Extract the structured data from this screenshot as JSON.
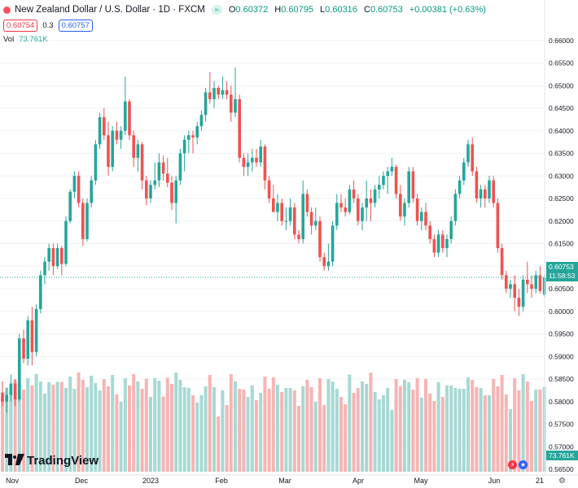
{
  "header": {
    "title": "New Zealand Dollar / U.S. Dollar · 1D · FXCM",
    "pill": "≈",
    "ohlc": [
      {
        "k": "O",
        "v": "0.60372"
      },
      {
        "k": "H",
        "v": "0.60795"
      },
      {
        "k": "L",
        "v": "0.60316"
      },
      {
        "k": "C",
        "v": "0.60753"
      }
    ],
    "change": "+0.00381 (+0.63%)",
    "sell_price": "0.60754",
    "spread": "0.3",
    "buy_price": "0.60757",
    "vol_label": "Vol",
    "vol_value": "73.761K"
  },
  "brand": {
    "logo_text": "TradingView"
  },
  "price_tags": {
    "last_price": "0.60753",
    "countdown": "11:58:53",
    "volume": "73.761K"
  },
  "icon_names": [
    "tradingview-logo-icon",
    "flash-icon",
    "us-flag-icon",
    "settings-gear-icon"
  ],
  "colors": {
    "up": "#26a69a",
    "down": "#ef5350",
    "up_volume": "#a7d9d4",
    "down_volume": "#f8b4b3",
    "last_line": "#26a69a"
  },
  "chart_data": {
    "type": "candlestick",
    "symbol": "NZDUSD",
    "ylim": [
      0.565,
      0.665
    ],
    "y_ticks": [
      "0.66000",
      "0.65500",
      "0.65000",
      "0.64500",
      "0.64000",
      "0.63500",
      "0.63000",
      "0.62500",
      "0.62000",
      "0.61500",
      "0.61000",
      "0.60500",
      "0.60000",
      "0.59500",
      "0.59000",
      "0.58500",
      "0.58000",
      "0.57500",
      "0.57000",
      "0.56500"
    ],
    "x_ticks": [
      "Nov",
      "Dec",
      "2023",
      "Feb",
      "Mar",
      "Apr",
      "May",
      "Jun",
      "21"
    ],
    "candles": [
      [
        0.582,
        0.5845,
        0.579,
        0.58
      ],
      [
        0.58,
        0.583,
        0.5775,
        0.5815
      ],
      [
        0.5815,
        0.586,
        0.58,
        0.584
      ],
      [
        0.584,
        0.585,
        0.579,
        0.5805
      ],
      [
        0.5805,
        0.595,
        0.58,
        0.594
      ],
      [
        0.594,
        0.596,
        0.5885,
        0.5895
      ],
      [
        0.5895,
        0.599,
        0.588,
        0.598
      ],
      [
        0.598,
        0.601,
        0.588,
        0.591
      ],
      [
        0.591,
        0.6015,
        0.59,
        0.6005
      ],
      [
        0.6005,
        0.609,
        0.5995,
        0.608
      ],
      [
        0.608,
        0.612,
        0.606,
        0.611
      ],
      [
        0.611,
        0.615,
        0.609,
        0.614
      ],
      [
        0.614,
        0.615,
        0.608,
        0.61
      ],
      [
        0.61,
        0.615,
        0.6095,
        0.614
      ],
      [
        0.614,
        0.6145,
        0.608,
        0.6105
      ],
      [
        0.6105,
        0.621,
        0.61,
        0.62
      ],
      [
        0.62,
        0.627,
        0.6195,
        0.6265
      ],
      [
        0.6265,
        0.631,
        0.625,
        0.63
      ],
      [
        0.63,
        0.631,
        0.623,
        0.624
      ],
      [
        0.624,
        0.625,
        0.6145,
        0.616
      ],
      [
        0.616,
        0.625,
        0.6155,
        0.624
      ],
      [
        0.624,
        0.63,
        0.623,
        0.629
      ],
      [
        0.629,
        0.638,
        0.628,
        0.637
      ],
      [
        0.637,
        0.644,
        0.636,
        0.643
      ],
      [
        0.643,
        0.645,
        0.638,
        0.639
      ],
      [
        0.639,
        0.642,
        0.63,
        0.632
      ],
      [
        0.632,
        0.641,
        0.631,
        0.64
      ],
      [
        0.64,
        0.642,
        0.637,
        0.638
      ],
      [
        0.638,
        0.641,
        0.636,
        0.64
      ],
      [
        0.64,
        0.652,
        0.639,
        0.6465
      ],
      [
        0.6465,
        0.647,
        0.638,
        0.639
      ],
      [
        0.639,
        0.64,
        0.632,
        0.634
      ],
      [
        0.634,
        0.638,
        0.631,
        0.637
      ],
      [
        0.637,
        0.6375,
        0.627,
        0.629
      ],
      [
        0.629,
        0.63,
        0.6235,
        0.625
      ],
      [
        0.625,
        0.629,
        0.624,
        0.628
      ],
      [
        0.628,
        0.633,
        0.627,
        0.629
      ],
      [
        0.629,
        0.635,
        0.6275,
        0.633
      ],
      [
        0.633,
        0.6345,
        0.629,
        0.6305
      ],
      [
        0.6305,
        0.634,
        0.6275,
        0.6285
      ],
      [
        0.6285,
        0.63,
        0.6225,
        0.624
      ],
      [
        0.624,
        0.63,
        0.6195,
        0.629
      ],
      [
        0.629,
        0.636,
        0.628,
        0.635
      ],
      [
        0.635,
        0.639,
        0.631,
        0.638
      ],
      [
        0.638,
        0.64,
        0.635,
        0.639
      ],
      [
        0.639,
        0.64,
        0.635,
        0.6385
      ],
      [
        0.6385,
        0.642,
        0.637,
        0.641
      ],
      [
        0.641,
        0.6445,
        0.64,
        0.6435
      ],
      [
        0.6435,
        0.6495,
        0.642,
        0.6485
      ],
      [
        0.6485,
        0.653,
        0.646,
        0.647
      ],
      [
        0.647,
        0.651,
        0.645,
        0.6495
      ],
      [
        0.6495,
        0.65,
        0.647,
        0.648
      ],
      [
        0.648,
        0.652,
        0.647,
        0.649
      ],
      [
        0.649,
        0.651,
        0.647,
        0.648
      ],
      [
        0.648,
        0.65,
        0.642,
        0.644
      ],
      [
        0.644,
        0.654,
        0.643,
        0.647
      ],
      [
        0.647,
        0.648,
        0.633,
        0.634
      ],
      [
        0.634,
        0.635,
        0.63,
        0.632
      ],
      [
        0.632,
        0.635,
        0.63,
        0.633
      ],
      [
        0.633,
        0.636,
        0.631,
        0.634
      ],
      [
        0.634,
        0.636,
        0.632,
        0.633
      ],
      [
        0.633,
        0.638,
        0.632,
        0.6365
      ],
      [
        0.6365,
        0.637,
        0.627,
        0.629
      ],
      [
        0.629,
        0.63,
        0.624,
        0.625
      ],
      [
        0.625,
        0.628,
        0.622,
        0.622
      ],
      [
        0.622,
        0.626,
        0.62,
        0.624
      ],
      [
        0.624,
        0.625,
        0.619,
        0.62
      ],
      [
        0.62,
        0.623,
        0.618,
        0.62
      ],
      [
        0.62,
        0.625,
        0.619,
        0.623
      ],
      [
        0.623,
        0.624,
        0.616,
        0.617
      ],
      [
        0.617,
        0.618,
        0.615,
        0.616
      ],
      [
        0.616,
        0.629,
        0.615,
        0.626
      ],
      [
        0.626,
        0.627,
        0.621,
        0.622
      ],
      [
        0.622,
        0.623,
        0.617,
        0.619
      ],
      [
        0.619,
        0.623,
        0.618,
        0.62
      ],
      [
        0.62,
        0.621,
        0.611,
        0.612
      ],
      [
        0.612,
        0.613,
        0.609,
        0.61
      ],
      [
        0.61,
        0.615,
        0.609,
        0.611
      ],
      [
        0.611,
        0.62,
        0.61,
        0.619
      ],
      [
        0.619,
        0.626,
        0.618,
        0.624
      ],
      [
        0.624,
        0.626,
        0.622,
        0.623
      ],
      [
        0.623,
        0.625,
        0.621,
        0.622
      ],
      [
        0.622,
        0.628,
        0.6215,
        0.627
      ],
      [
        0.627,
        0.629,
        0.624,
        0.625
      ],
      [
        0.625,
        0.626,
        0.619,
        0.62
      ],
      [
        0.62,
        0.624,
        0.618,
        0.623
      ],
      [
        0.623,
        0.629,
        0.62,
        0.625
      ],
      [
        0.625,
        0.627,
        0.62,
        0.624
      ],
      [
        0.624,
        0.628,
        0.623,
        0.627
      ],
      [
        0.627,
        0.63,
        0.625,
        0.628
      ],
      [
        0.628,
        0.631,
        0.627,
        0.63
      ],
      [
        0.63,
        0.632,
        0.626,
        0.631
      ],
      [
        0.631,
        0.634,
        0.63,
        0.632
      ],
      [
        0.632,
        0.6325,
        0.625,
        0.626
      ],
      [
        0.626,
        0.628,
        0.62,
        0.621
      ],
      [
        0.621,
        0.625,
        0.619,
        0.624
      ],
      [
        0.624,
        0.632,
        0.623,
        0.631
      ],
      [
        0.631,
        0.632,
        0.624,
        0.625
      ],
      [
        0.625,
        0.626,
        0.619,
        0.62
      ],
      [
        0.62,
        0.623,
        0.618,
        0.622
      ],
      [
        0.622,
        0.624,
        0.618,
        0.619
      ],
      [
        0.619,
        0.62,
        0.615,
        0.616
      ],
      [
        0.616,
        0.617,
        0.612,
        0.613
      ],
      [
        0.613,
        0.618,
        0.612,
        0.617
      ],
      [
        0.617,
        0.618,
        0.613,
        0.614
      ],
      [
        0.614,
        0.617,
        0.612,
        0.616
      ],
      [
        0.616,
        0.621,
        0.615,
        0.62
      ],
      [
        0.62,
        0.627,
        0.619,
        0.626
      ],
      [
        0.626,
        0.63,
        0.625,
        0.629
      ],
      [
        0.629,
        0.634,
        0.628,
        0.633
      ],
      [
        0.633,
        0.638,
        0.632,
        0.637
      ],
      [
        0.637,
        0.6385,
        0.63,
        0.631
      ],
      [
        0.631,
        0.632,
        0.624,
        0.625
      ],
      [
        0.625,
        0.628,
        0.623,
        0.627
      ],
      [
        0.627,
        0.628,
        0.623,
        0.625
      ],
      [
        0.625,
        0.63,
        0.624,
        0.629
      ],
      [
        0.629,
        0.63,
        0.623,
        0.624
      ],
      [
        0.624,
        0.625,
        0.613,
        0.614
      ],
      [
        0.614,
        0.615,
        0.607,
        0.608
      ],
      [
        0.608,
        0.609,
        0.604,
        0.605
      ],
      [
        0.605,
        0.607,
        0.603,
        0.606
      ],
      [
        0.606,
        0.608,
        0.6,
        0.603
      ],
      [
        0.603,
        0.605,
        0.599,
        0.601
      ],
      [
        0.601,
        0.608,
        0.6,
        0.607
      ],
      [
        0.607,
        0.611,
        0.604,
        0.606
      ],
      [
        0.606,
        0.608,
        0.603,
        0.605
      ],
      [
        0.605,
        0.609,
        0.604,
        0.608
      ],
      [
        0.608,
        0.61,
        0.604,
        0.6045
      ],
      [
        0.6037,
        0.608,
        0.6032,
        0.6075
      ]
    ],
    "volume_range": [
      0,
      120000
    ]
  }
}
